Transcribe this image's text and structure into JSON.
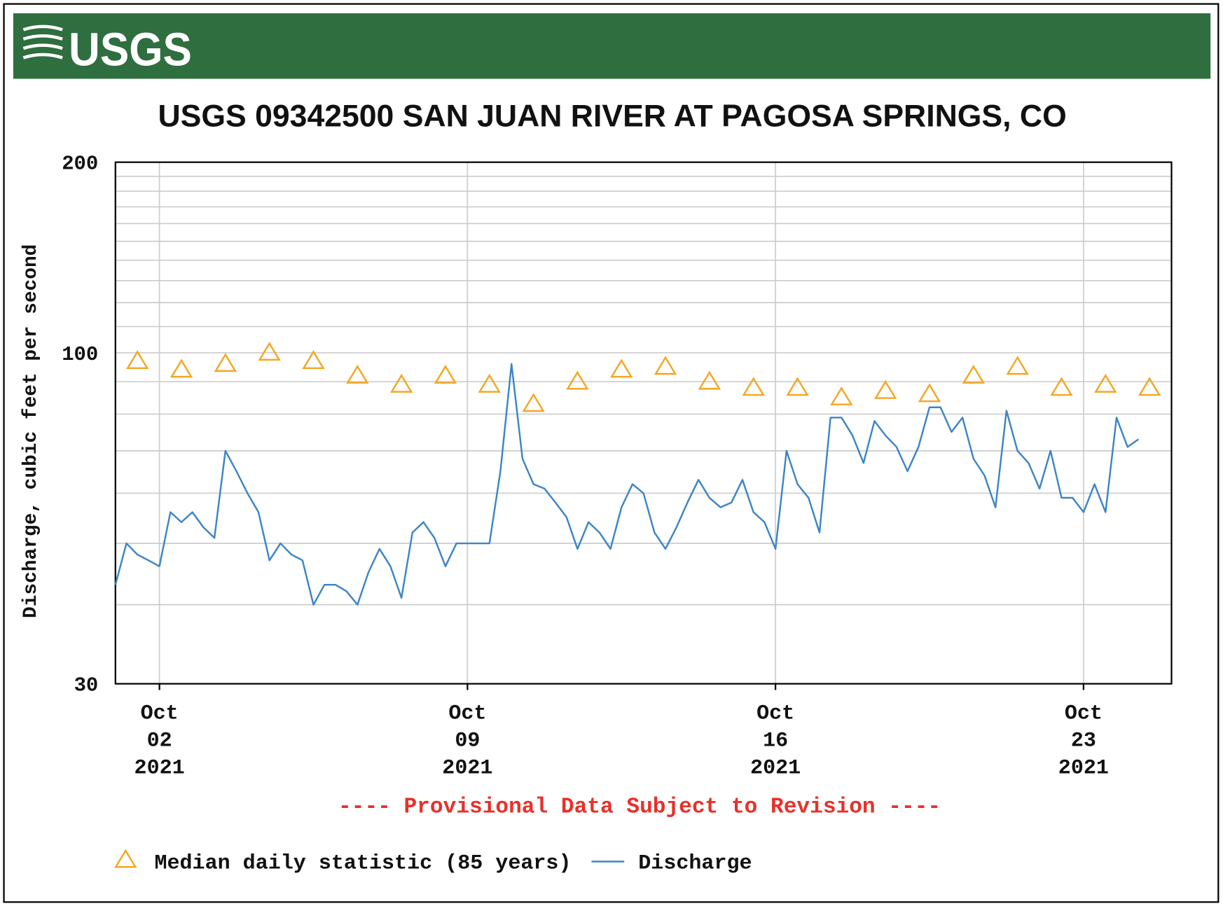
{
  "header": {
    "logo": "USGS"
  },
  "chart_data": {
    "type": "line",
    "title": "USGS 09342500 SAN JUAN RIVER AT PAGOSA SPRINGS, CO",
    "ylabel": "Discharge, cubic feet per second",
    "note": "---- Provisional Data Subject to Revision ----",
    "yscale": "log",
    "ylim": [
      30,
      200
    ],
    "yticks": [
      30,
      100,
      200
    ],
    "minor_yticks": [
      40,
      50,
      60,
      70,
      80,
      90,
      110,
      120,
      130,
      140,
      150,
      160,
      170,
      180,
      190
    ],
    "xlim": [
      "2021-10-01",
      "2021-10-25"
    ],
    "xticks": [
      {
        "value": "2021-10-02",
        "label": [
          "Oct",
          "02",
          "2021"
        ]
      },
      {
        "value": "2021-10-09",
        "label": [
          "Oct",
          "09",
          "2021"
        ]
      },
      {
        "value": "2021-10-16",
        "label": [
          "Oct",
          "16",
          "2021"
        ]
      },
      {
        "value": "2021-10-23",
        "label": [
          "Oct",
          "23",
          "2021"
        ]
      }
    ],
    "grid": true,
    "legend": "bottom",
    "series": [
      {
        "name": "Median daily statistic (85 years)",
        "color": "#f5a623",
        "marker": "triangle",
        "x": [
          "2021-10-01T12:00",
          "2021-10-02T12:00",
          "2021-10-03T12:00",
          "2021-10-04T12:00",
          "2021-10-05T12:00",
          "2021-10-06T12:00",
          "2021-10-07T12:00",
          "2021-10-08T12:00",
          "2021-10-09T12:00",
          "2021-10-10T12:00",
          "2021-10-11T12:00",
          "2021-10-12T12:00",
          "2021-10-13T12:00",
          "2021-10-14T12:00",
          "2021-10-15T12:00",
          "2021-10-16T12:00",
          "2021-10-17T12:00",
          "2021-10-18T12:00",
          "2021-10-19T12:00",
          "2021-10-20T12:00",
          "2021-10-21T12:00",
          "2021-10-22T12:00",
          "2021-10-23T12:00",
          "2021-10-24T12:00"
        ],
        "values": [
          97,
          94,
          96,
          100,
          97,
          92,
          89,
          92,
          89,
          83,
          90,
          94,
          95,
          90,
          88,
          88,
          85,
          87,
          86,
          92,
          95,
          88,
          89,
          88
        ]
      },
      {
        "name": "Discharge",
        "color": "#3d85c6",
        "marker": "line",
        "x": [
          "2021-10-01T00:00",
          "2021-10-01T06:00",
          "2021-10-01T12:00",
          "2021-10-01T18:00",
          "2021-10-02T00:00",
          "2021-10-02T06:00",
          "2021-10-02T12:00",
          "2021-10-02T18:00",
          "2021-10-03T00:00",
          "2021-10-03T06:00",
          "2021-10-03T12:00",
          "2021-10-03T18:00",
          "2021-10-04T00:00",
          "2021-10-04T06:00",
          "2021-10-04T12:00",
          "2021-10-04T18:00",
          "2021-10-05T00:00",
          "2021-10-05T06:00",
          "2021-10-05T12:00",
          "2021-10-05T18:00",
          "2021-10-06T00:00",
          "2021-10-06T06:00",
          "2021-10-06T12:00",
          "2021-10-06T18:00",
          "2021-10-07T00:00",
          "2021-10-07T06:00",
          "2021-10-07T12:00",
          "2021-10-07T18:00",
          "2021-10-08T00:00",
          "2021-10-08T06:00",
          "2021-10-08T12:00",
          "2021-10-08T18:00",
          "2021-10-09T00:00",
          "2021-10-09T06:00",
          "2021-10-09T12:00",
          "2021-10-09T18:00",
          "2021-10-10T00:00",
          "2021-10-10T06:00",
          "2021-10-10T12:00",
          "2021-10-10T18:00",
          "2021-10-11T00:00",
          "2021-10-11T06:00",
          "2021-10-11T12:00",
          "2021-10-11T18:00",
          "2021-10-12T00:00",
          "2021-10-12T06:00",
          "2021-10-12T12:00",
          "2021-10-12T18:00",
          "2021-10-13T00:00",
          "2021-10-13T06:00",
          "2021-10-13T12:00",
          "2021-10-13T18:00",
          "2021-10-14T00:00",
          "2021-10-14T06:00",
          "2021-10-14T12:00",
          "2021-10-14T18:00",
          "2021-10-15T00:00",
          "2021-10-15T06:00",
          "2021-10-15T12:00",
          "2021-10-15T18:00",
          "2021-10-16T00:00",
          "2021-10-16T06:00",
          "2021-10-16T12:00",
          "2021-10-16T18:00",
          "2021-10-17T00:00",
          "2021-10-17T06:00",
          "2021-10-17T12:00",
          "2021-10-17T18:00",
          "2021-10-18T00:00",
          "2021-10-18T06:00",
          "2021-10-18T12:00",
          "2021-10-18T18:00",
          "2021-10-19T00:00",
          "2021-10-19T06:00",
          "2021-10-19T12:00",
          "2021-10-19T18:00",
          "2021-10-20T00:00",
          "2021-10-20T06:00",
          "2021-10-20T12:00",
          "2021-10-20T18:00",
          "2021-10-21T00:00",
          "2021-10-21T06:00",
          "2021-10-21T12:00",
          "2021-10-21T18:00",
          "2021-10-22T00:00",
          "2021-10-22T06:00",
          "2021-10-22T12:00",
          "2021-10-22T18:00",
          "2021-10-23T00:00",
          "2021-10-23T06:00",
          "2021-10-23T12:00",
          "2021-10-23T18:00",
          "2021-10-24T00:00",
          "2021-10-24T06:00"
        ],
        "values": [
          43,
          50,
          48,
          47,
          46,
          56,
          54,
          56,
          53,
          51,
          70,
          65,
          60,
          56,
          47,
          50,
          48,
          47,
          40,
          43,
          43,
          42,
          40,
          45,
          49,
          46,
          41,
          52,
          54,
          51,
          46,
          50,
          50,
          50,
          50,
          65,
          96,
          68,
          62,
          61,
          58,
          55,
          49,
          54,
          52,
          49,
          57,
          62,
          60,
          52,
          49,
          53,
          58,
          63,
          59,
          57,
          58,
          63,
          56,
          54,
          49,
          70,
          62,
          59,
          52,
          79,
          79,
          74,
          67,
          78,
          74,
          71,
          65,
          71,
          82,
          82,
          75,
          79,
          68,
          64,
          57,
          81,
          70,
          67,
          61,
          70,
          59,
          59,
          56,
          62,
          56,
          79,
          71,
          73
        ]
      }
    ]
  }
}
